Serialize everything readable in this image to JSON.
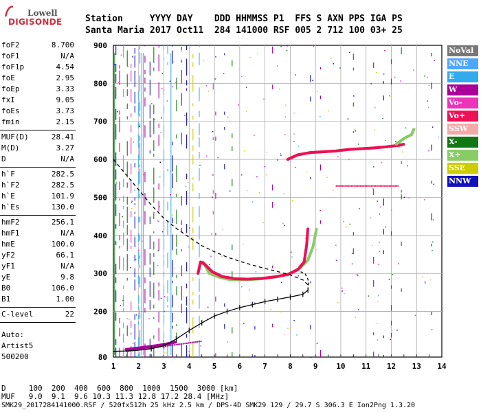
{
  "logo": {
    "top": "Lowell",
    "bottom": "DIGISONDE"
  },
  "header": {
    "line1": "Station     YYYY DAY    DDD HHMMSS P1  FFS S AXN PPS IGA PS",
    "line2": "Santa Maria 2017 Oct11  284 141000 RSF 005 2 712 100 03+ 25"
  },
  "sidebar": {
    "group1": [
      {
        "label": "foF2",
        "value": "8.700"
      },
      {
        "label": "foF1",
        "value": "N/A"
      },
      {
        "label": "foF1p",
        "value": "4.54"
      },
      {
        "label": "foE",
        "value": "2.95"
      },
      {
        "label": "foEp",
        "value": "3.33"
      },
      {
        "label": "fxI",
        "value": "9.05"
      },
      {
        "label": "foEs",
        "value": "3.73"
      },
      {
        "label": "fmin",
        "value": "2.15"
      }
    ],
    "group2": [
      {
        "label": "MUF(D)",
        "value": "28.41"
      },
      {
        "label": "M(D)",
        "value": "3.27"
      },
      {
        "label": "D",
        "value": "N/A"
      }
    ],
    "group3": [
      {
        "label": "h`F",
        "value": "282.5"
      },
      {
        "label": "h`F2",
        "value": "282.5"
      },
      {
        "label": "h`E",
        "value": "101.9"
      },
      {
        "label": "h`Es",
        "value": "130.0"
      }
    ],
    "group4": [
      {
        "label": "hmF2",
        "value": "256.1"
      },
      {
        "label": "hmF1",
        "value": "N/A"
      },
      {
        "label": "hmE",
        "value": "100.0"
      },
      {
        "label": "yF2",
        "value": "66.1"
      },
      {
        "label": "yF1",
        "value": "N/A"
      },
      {
        "label": "yE",
        "value": "9.8"
      },
      {
        "label": "B0",
        "value": "106.0"
      },
      {
        "label": "B1",
        "value": "1.00"
      }
    ],
    "group5": [
      {
        "label": "C-level",
        "value": "22"
      }
    ],
    "auto": [
      "Auto:",
      "Artist5",
      "500200"
    ]
  },
  "legend": [
    {
      "label": "NoVal",
      "color": "#777777"
    },
    {
      "label": "NNE",
      "color": "#4fa6ff"
    },
    {
      "label": "E",
      "color": "#33aaee"
    },
    {
      "label": "W",
      "color": "#aa0099"
    },
    {
      "label": "Vo-",
      "color": "#ee33bb"
    },
    {
      "label": "Vo+",
      "color": "#ee1155"
    },
    {
      "label": "SSW",
      "color": "#f4a9a9"
    },
    {
      "label": "X-",
      "color": "#117711"
    },
    {
      "label": "X+",
      "color": "#88cc66"
    },
    {
      "label": "SSE",
      "color": "#cccc00"
    },
    {
      "label": "NNW",
      "color": "#1111bb"
    }
  ],
  "bottom": {
    "d_row": "D     100  200  400  600  800  1000  1500  3000 [km]",
    "muf_row": "MUF   9.0  9.1  9.6 10.3 11.3 12.8 17.2 28.4 [MHz]",
    "footer": "SMK29_2017284141000.RSF / 520fx512h 25 kHz 2.5 km / DPS-4D SMK29 129 / 29.7 S 306.3 E Ion2Png 1.3.20"
  },
  "chart_data": {
    "type": "scatter",
    "xlim": [
      1,
      14
    ],
    "ylim": [
      80,
      900
    ],
    "xticks": [
      1,
      2,
      3,
      4,
      5,
      6,
      7,
      8,
      9,
      10,
      11,
      12,
      13,
      14
    ],
    "yticks": [
      80,
      200,
      300,
      400,
      500,
      600,
      700,
      800,
      900
    ],
    "grid": true,
    "series": [
      {
        "name": "X+",
        "color": "#88cc66",
        "x": [
          4.55,
          4.8,
          5.2,
          5.6,
          6.0,
          6.5,
          7.0,
          7.5,
          8.0,
          8.4,
          8.7,
          8.9,
          9.05
        ],
        "y": [
          330,
          300,
          290,
          284,
          283,
          284,
          287,
          292,
          300,
          315,
          335,
          370,
          420
        ]
      },
      {
        "name": "Vo+",
        "color": "#ee1155",
        "x": [
          4.35,
          4.45,
          4.6,
          4.9,
          5.3,
          5.8,
          6.3,
          6.9,
          7.4,
          7.9,
          8.3,
          8.55,
          8.65,
          8.7
        ],
        "y": [
          300,
          330,
          325,
          305,
          292,
          286,
          285,
          287,
          291,
          297,
          310,
          330,
          375,
          420
        ]
      },
      {
        "name": "Vo+ (F2 upper)",
        "color": "#ee1155",
        "x": [
          7.9,
          8.3,
          8.8,
          9.3,
          9.8,
          10.3,
          10.8,
          11.3,
          11.8,
          12.3,
          12.5
        ],
        "y": [
          600,
          612,
          618,
          620,
          622,
          626,
          628,
          630,
          633,
          637,
          640
        ]
      },
      {
        "name": "X+ (F2 upper)",
        "color": "#88cc66",
        "x": [
          12.2,
          12.5,
          12.8,
          12.9
        ],
        "y": [
          640,
          655,
          665,
          680
        ]
      },
      {
        "name": "W",
        "color": "#aa0099",
        "x": [
          1.5,
          2.0,
          2.5,
          3.0,
          3.5
        ],
        "y": [
          100,
          104,
          108,
          113,
          120
        ]
      }
    ],
    "profile_dashed": {
      "x": [
        1.0,
        1.5,
        2.0,
        2.5,
        3.0,
        3.5,
        4.0,
        4.5,
        5.0,
        5.5,
        6.0,
        6.5,
        7.0,
        7.5,
        8.0,
        8.5,
        8.7
      ],
      "y": [
        600,
        560,
        520,
        480,
        445,
        418,
        395,
        373,
        357,
        343,
        332,
        322,
        313,
        305,
        296,
        283,
        270
      ]
    },
    "profile_solid": {
      "x": [
        1.0,
        1.5,
        2.0,
        2.5,
        3.0,
        3.5,
        4.0,
        4.5,
        5.0,
        5.5,
        6.0,
        6.5,
        7.0,
        7.5,
        8.0,
        8.5,
        8.7
      ],
      "y": [
        95,
        96,
        98,
        102,
        110,
        128,
        150,
        170,
        188,
        200,
        210,
        218,
        226,
        232,
        238,
        245,
        256
      ]
    },
    "nose_curve": {
      "x": [
        8.7,
        8.72,
        8.7,
        8.6,
        8.4
      ],
      "y": [
        256,
        270,
        285,
        298,
        305
      ]
    }
  }
}
